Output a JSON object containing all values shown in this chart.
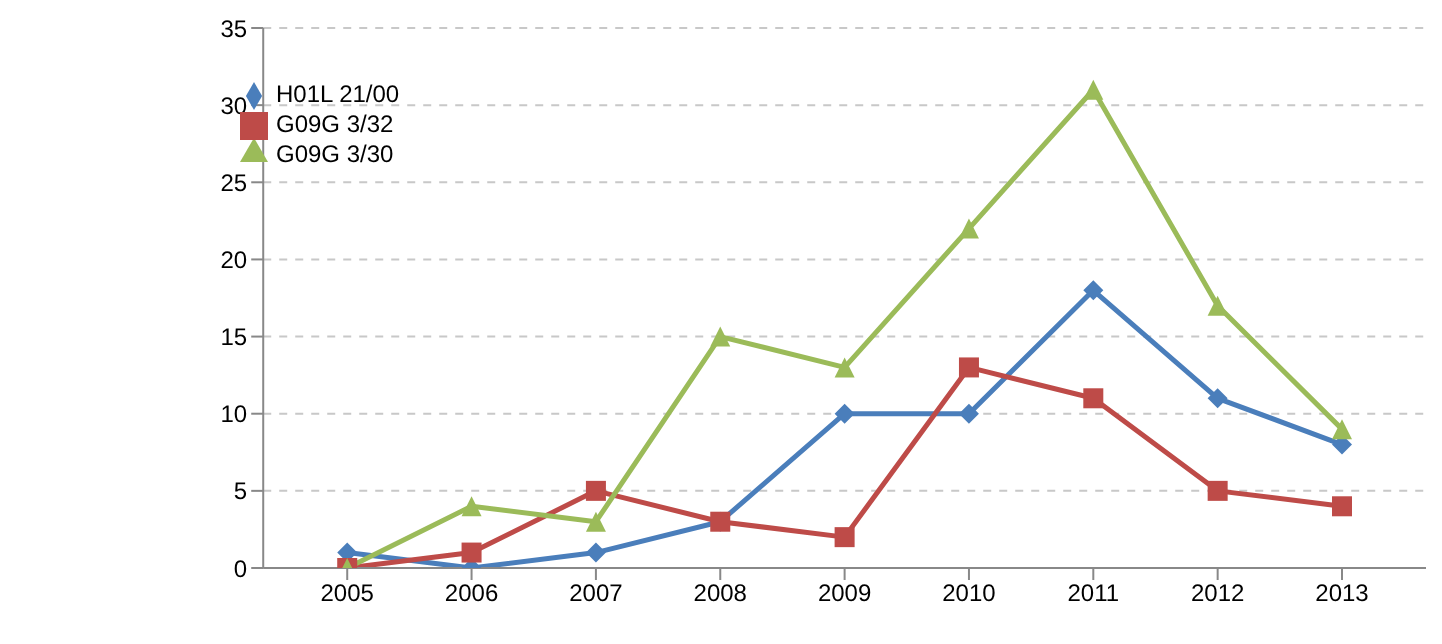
{
  "chart_data": {
    "type": "line",
    "categories": [
      "2005",
      "2006",
      "2007",
      "2008",
      "2009",
      "2010",
      "2011",
      "2012",
      "2013"
    ],
    "series": [
      {
        "name": "H01L 21/00",
        "color": "#4a7ebb",
        "marker": "diamond",
        "values": [
          1,
          0,
          1,
          3,
          10,
          10,
          18,
          11,
          8
        ]
      },
      {
        "name": "G09G 3/32",
        "color": "#be4b48",
        "marker": "square",
        "values": [
          0,
          1,
          5,
          3,
          2,
          13,
          11,
          5,
          4
        ]
      },
      {
        "name": "G09G 3/30",
        "color": "#9bbb59",
        "marker": "triangle",
        "values": [
          0,
          4,
          3,
          15,
          13,
          22,
          31,
          17,
          9
        ]
      }
    ],
    "ylim": [
      0,
      35
    ],
    "yticks": [
      0,
      5,
      10,
      15,
      20,
      25,
      30,
      35
    ],
    "grid": "y",
    "legend": "top left",
    "line_style": "solid"
  }
}
